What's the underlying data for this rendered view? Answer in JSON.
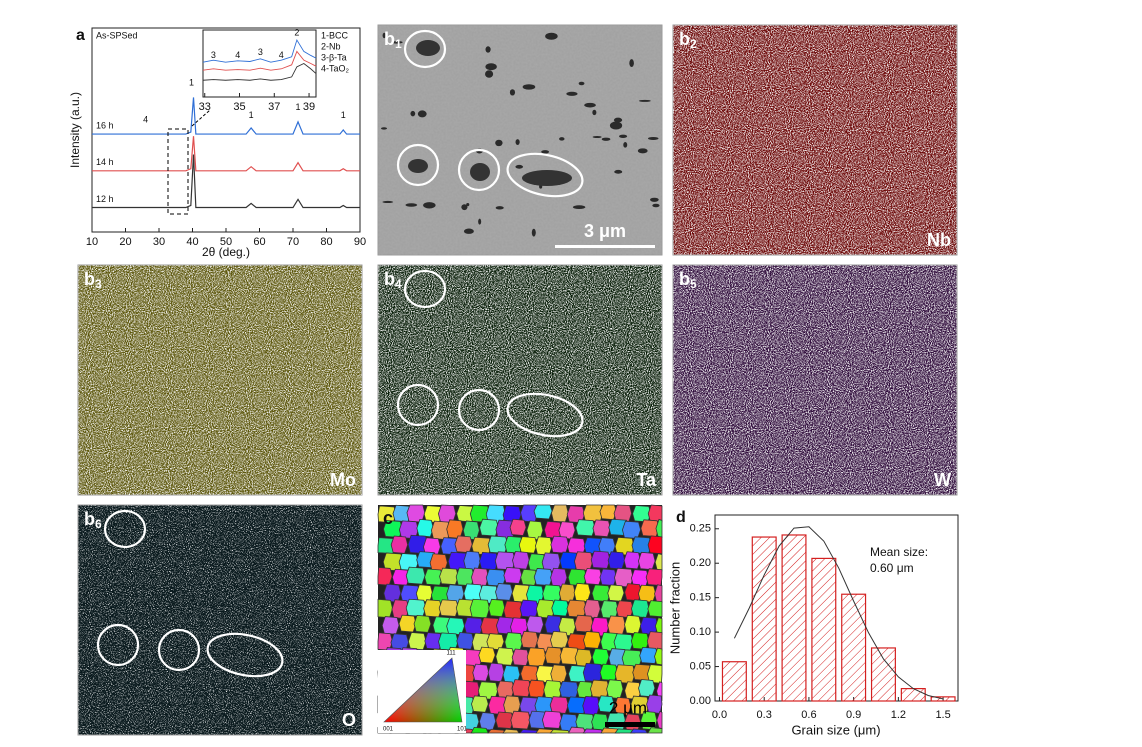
{
  "chart_data": [
    {
      "type": "line",
      "panel_label": "a",
      "subtitle": "As-SPSed",
      "xlabel": "2θ (deg.)",
      "ylabel": "Intensity (a.u.)",
      "x": [
        10,
        38,
        39.5,
        40.3,
        41,
        56,
        57.5,
        59,
        70,
        71.5,
        73,
        84,
        85,
        86,
        90
      ],
      "series": [
        {
          "name": "16 h",
          "color": "#2f6fd6",
          "values": [
            48,
            48,
            49,
            66,
            48,
            48,
            51,
            48,
            48,
            54,
            48,
            48,
            50,
            48,
            48
          ]
        },
        {
          "name": "14 h",
          "color": "#e05050",
          "values": [
            30,
            30,
            31,
            47,
            30,
            30,
            32,
            30,
            30,
            34,
            30,
            30,
            31,
            30,
            30
          ]
        },
        {
          "name": "12 h",
          "color": "#333333",
          "values": [
            12,
            12,
            13,
            38,
            12,
            12,
            14,
            12,
            12,
            16,
            12,
            12,
            13,
            12,
            12
          ]
        }
      ],
      "xlim": [
        10,
        90
      ],
      "xticks": [
        10,
        20,
        30,
        40,
        50,
        60,
        70,
        80,
        90
      ],
      "ylim": [
        0,
        100
      ],
      "peak_labels": [
        "1",
        "1",
        "1",
        "1",
        "4"
      ]
    },
    {
      "type": "line",
      "legend": [
        "1-BCC",
        "2-Nb",
        "3-β-Ta",
        "4-TaO₂"
      ],
      "x": [
        32.9,
        33.5,
        34.2,
        34.9,
        35.6,
        36.2,
        36.8,
        37.4,
        38,
        38.3,
        38.7,
        39.1,
        39.4
      ],
      "series": [
        {
          "color": "#2f6fd6",
          "values": [
            52,
            55,
            52,
            54,
            53,
            57,
            52,
            55,
            60,
            85,
            68,
            62,
            58
          ]
        },
        {
          "color": "#e05050",
          "values": [
            40,
            42,
            40,
            41,
            40,
            43,
            40,
            42,
            48,
            68,
            55,
            50,
            46
          ]
        },
        {
          "color": "#333333",
          "values": [
            25,
            26,
            25,
            26,
            25,
            27,
            25,
            26,
            30,
            45,
            50,
            42,
            35
          ]
        }
      ],
      "xlim": [
        32.9,
        39.4
      ],
      "xticks": [
        33,
        35,
        37,
        39
      ],
      "ylim": [
        0,
        100
      ],
      "peak_labels": [
        "3",
        "4",
        "3",
        "4",
        "2"
      ]
    },
    {
      "type": "histogram",
      "panel_label": "d",
      "xlabel": "Grain size (μm)",
      "ylabel": "Number fraction",
      "annotation": [
        "Mean size:",
        "0.60 μm"
      ],
      "bins": [
        0,
        0.2,
        0.4,
        0.6,
        0.8,
        1.0,
        1.2,
        1.4,
        1.6
      ],
      "values": [
        0.057,
        0.238,
        0.241,
        0.207,
        0.155,
        0.077,
        0.018,
        0.006
      ],
      "color": "#d42020",
      "fit": {
        "x": [
          0.1,
          0.2,
          0.3,
          0.4,
          0.5,
          0.6,
          0.7,
          0.8,
          0.9,
          1.0,
          1.1,
          1.2,
          1.3,
          1.4,
          1.5
        ],
        "values": [
          0.091,
          0.135,
          0.183,
          0.225,
          0.251,
          0.253,
          0.232,
          0.193,
          0.145,
          0.099,
          0.061,
          0.035,
          0.018,
          0.008,
          0.003
        ]
      },
      "xlim": [
        -0.03,
        1.6
      ],
      "xticks": [
        {
          "value": 0,
          "label": "0.0"
        },
        0.3,
        0.6,
        0.9,
        1.2,
        1.5
      ],
      "ylim": [
        0,
        0.27
      ],
      "yticks": [
        {
          "value": 0,
          "label": "0.00"
        },
        0.05,
        {
          "value": 0.1,
          "label": "0.10"
        },
        0.15,
        {
          "value": 0.2,
          "label": "0.20"
        },
        0.25
      ]
    }
  ],
  "panels": {
    "b1": {
      "label": "b",
      "sub": "1",
      "scale_bar": "3 μm"
    },
    "b2": {
      "label": "b",
      "sub": "2",
      "element": "Nb"
    },
    "b3": {
      "label": "b",
      "sub": "3",
      "element": "Mo"
    },
    "b4": {
      "label": "b",
      "sub": "4",
      "element": "Ta"
    },
    "b5": {
      "label": "b",
      "sub": "5",
      "element": "W"
    },
    "b6": {
      "label": "b",
      "sub": "6",
      "element": "O"
    },
    "c": {
      "label": "c",
      "scale_bar": "2 μm",
      "ipf": [
        "111",
        "001",
        "101"
      ]
    }
  }
}
